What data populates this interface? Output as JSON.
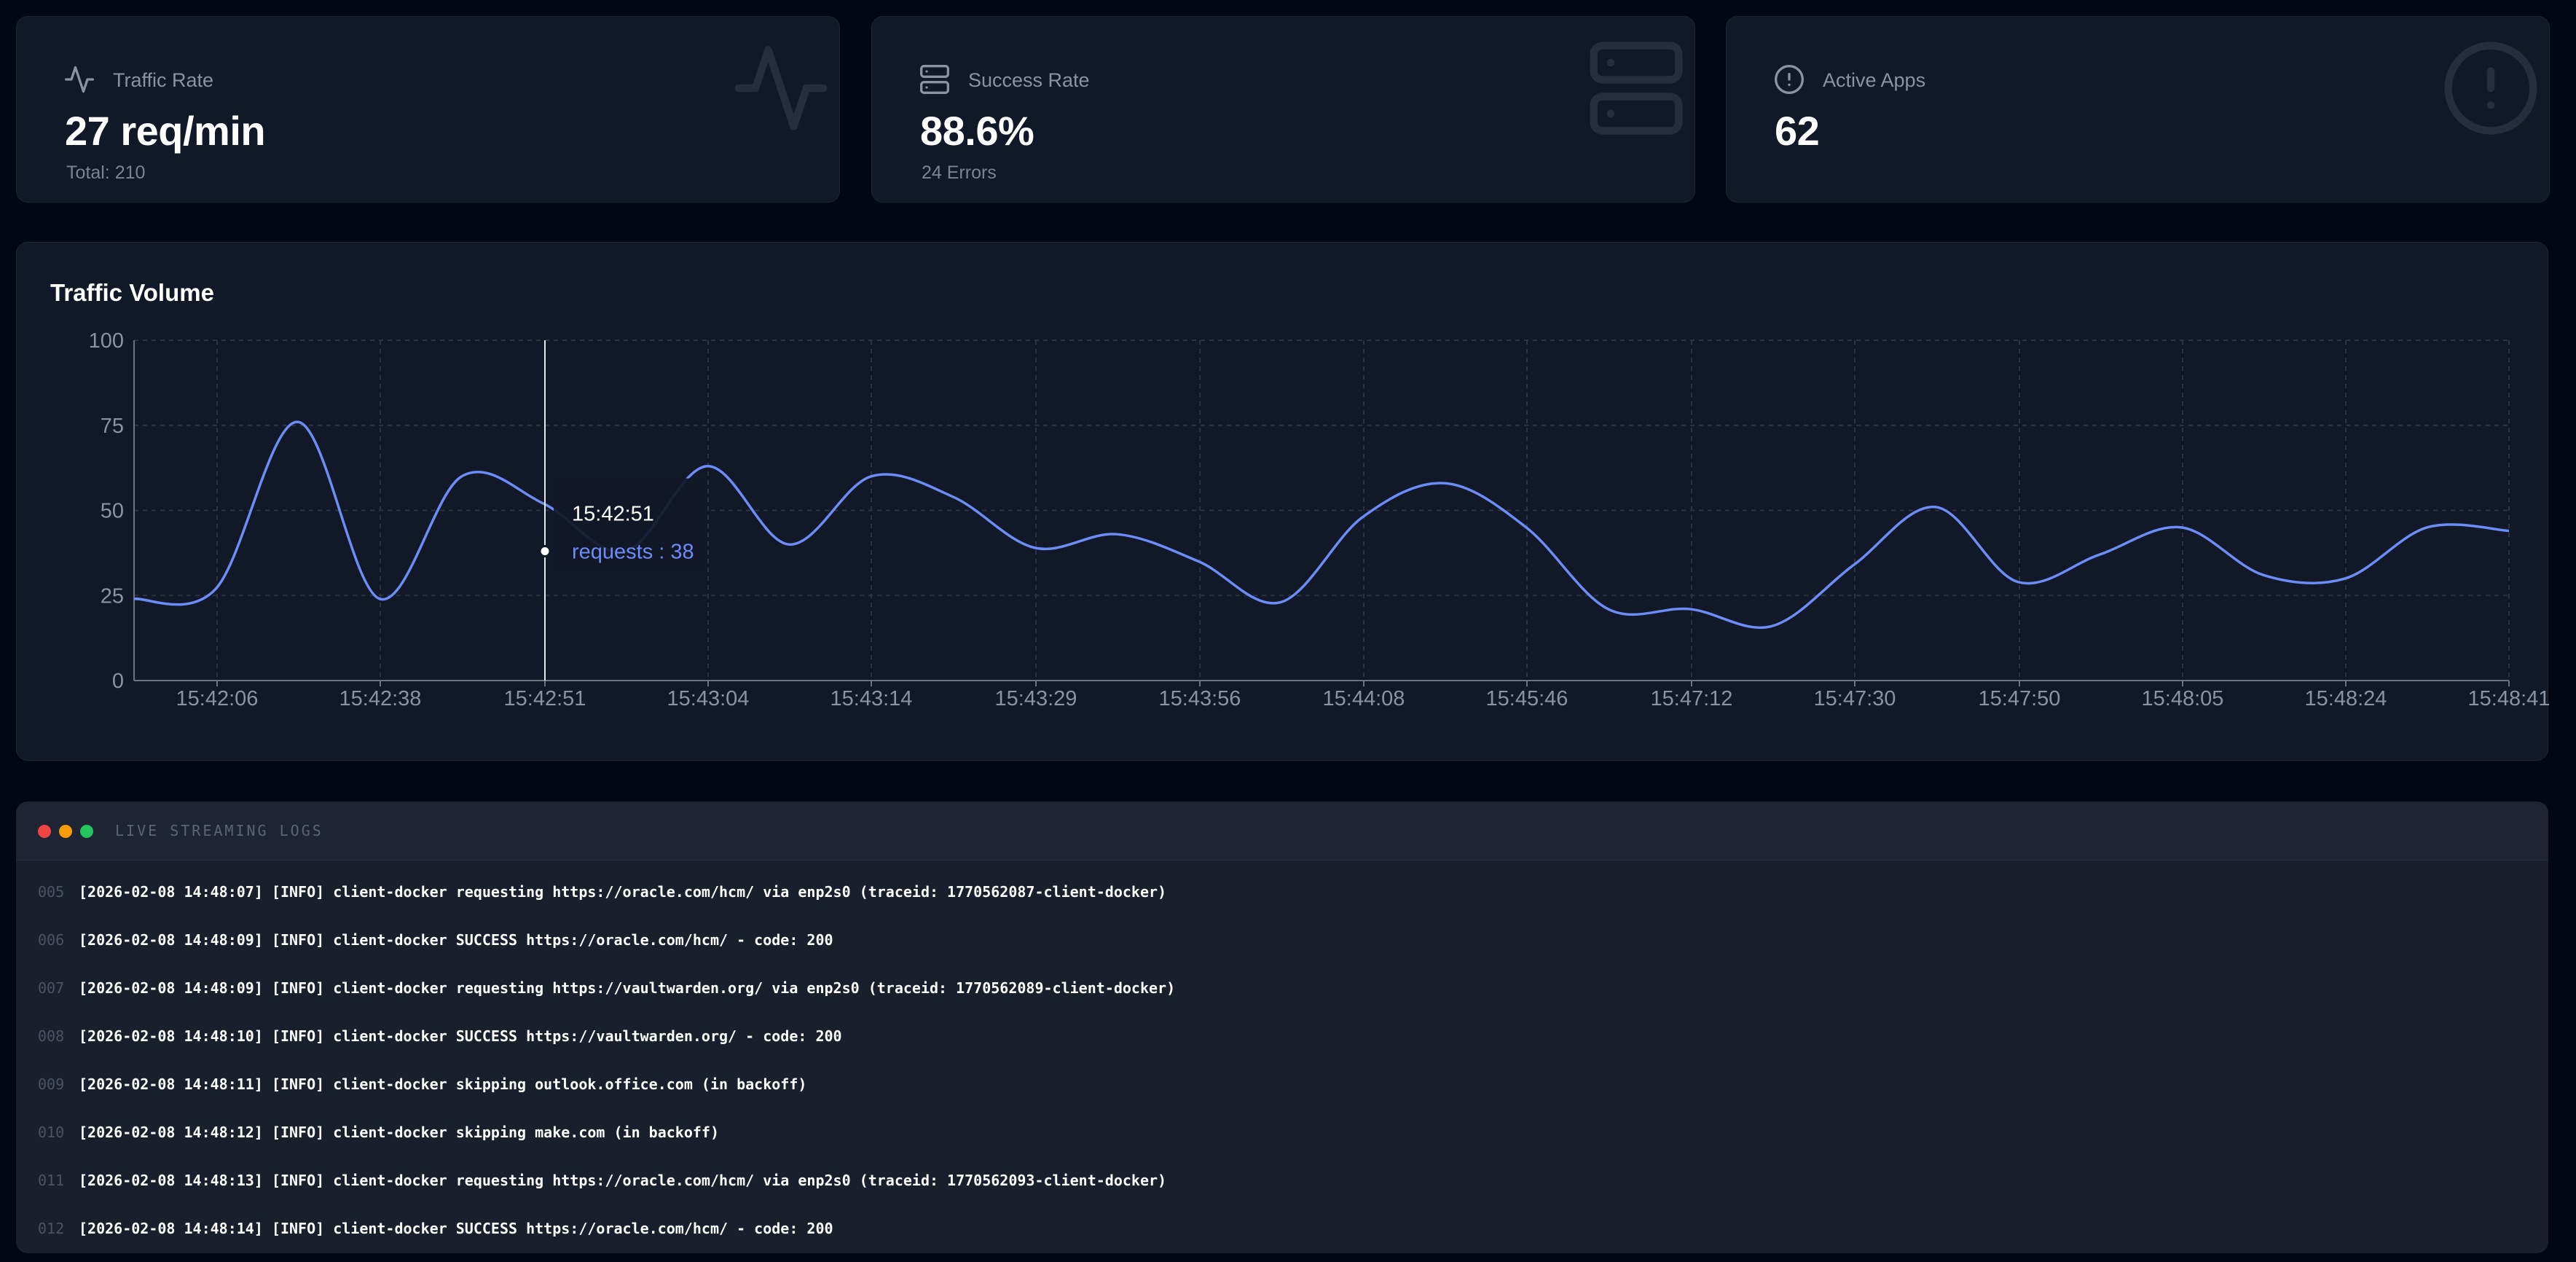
{
  "stats": [
    {
      "label": "Traffic Rate",
      "value": "27 req/min",
      "sub": "Total: 210",
      "icon": "activity-icon"
    },
    {
      "label": "Success Rate",
      "value": "88.6%",
      "sub": "24 Errors",
      "icon": "server-icon"
    },
    {
      "label": "Active Apps",
      "value": "62",
      "sub": "",
      "icon": "alert-circle-icon"
    }
  ],
  "chart_title": "Traffic Volume",
  "chart_data": {
    "type": "line",
    "series": [
      {
        "name": "requests",
        "color": "#6d8cf5",
        "values": [
          24,
          27,
          76,
          24,
          60,
          52,
          38,
          63,
          40,
          60,
          54,
          39,
          43,
          35,
          23,
          48,
          58,
          45,
          21,
          21,
          16,
          34,
          51,
          29,
          37,
          45,
          31,
          30,
          45,
          44
        ]
      }
    ],
    "x_ticks": [
      "15:42:06",
      "15:42:38",
      "15:42:51",
      "15:43:04",
      "15:43:14",
      "15:43:29",
      "15:43:56",
      "15:44:08",
      "15:45:46",
      "15:47:12",
      "15:47:30",
      "15:47:50",
      "15:48:05",
      "15:48:24",
      "15:48:41"
    ],
    "yticks": [
      0,
      25,
      50,
      75,
      100
    ],
    "ylim": [
      0,
      100
    ],
    "grid": true,
    "tooltip": {
      "time": "15:42:51",
      "label": "requests : 38",
      "value": 38
    }
  },
  "logs": {
    "title": "LIVE STREAMING LOGS",
    "dot_colors": [
      "#ef4444",
      "#f59e0b",
      "#22c55e"
    ],
    "lines": [
      {
        "num": "005",
        "text": "[2026-02-08 14:48:07] [INFO] client-docker requesting https://oracle.com/hcm/ via enp2s0 (traceid: 1770562087-client-docker)"
      },
      {
        "num": "006",
        "text": "[2026-02-08 14:48:09] [INFO] client-docker SUCCESS https://oracle.com/hcm/ - code: 200"
      },
      {
        "num": "007",
        "text": "[2026-02-08 14:48:09] [INFO] client-docker requesting https://vaultwarden.org/ via enp2s0 (traceid: 1770562089-client-docker)"
      },
      {
        "num": "008",
        "text": "[2026-02-08 14:48:10] [INFO] client-docker SUCCESS https://vaultwarden.org/ - code: 200"
      },
      {
        "num": "009",
        "text": "[2026-02-08 14:48:11] [INFO] client-docker skipping outlook.office.com (in backoff)"
      },
      {
        "num": "010",
        "text": "[2026-02-08 14:48:12] [INFO] client-docker skipping make.com (in backoff)"
      },
      {
        "num": "011",
        "text": "[2026-02-08 14:48:13] [INFO] client-docker requesting https://oracle.com/hcm/ via enp2s0 (traceid: 1770562093-client-docker)"
      },
      {
        "num": "012",
        "text": "[2026-02-08 14:48:14] [INFO] client-docker SUCCESS https://oracle.com/hcm/ - code: 200"
      }
    ]
  }
}
